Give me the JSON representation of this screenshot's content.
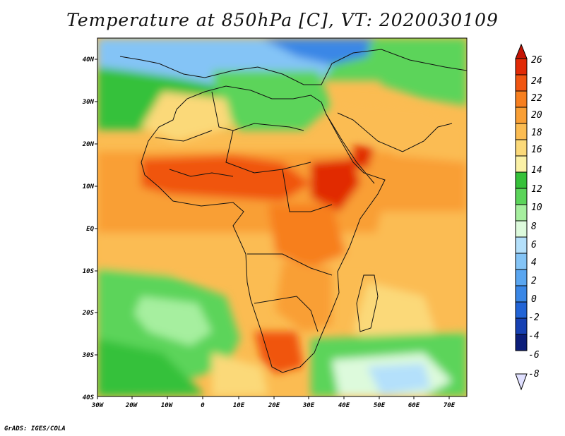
{
  "title": "Temperature at 850hPa [C], VT: 2020030109",
  "credit": "GrADS: IGES/COLA",
  "map": {
    "lon_labels": [
      "30W",
      "20W",
      "10W",
      "0",
      "10E",
      "20E",
      "30E",
      "40E",
      "50E",
      "60E",
      "70E"
    ],
    "lat_labels": [
      "40N",
      "30N",
      "20N",
      "10N",
      "EQ",
      "10S",
      "20S",
      "30S",
      "40S"
    ]
  },
  "colorbar": {
    "labels": [
      "26",
      "24",
      "22",
      "20",
      "18",
      "16",
      "14",
      "12",
      "10",
      "8",
      "6",
      "4",
      "2",
      "0",
      "-2",
      "-4",
      "-6",
      "-8"
    ],
    "colors": [
      "#e12a06",
      "#f05511",
      "#f77f1f",
      "#f99f35",
      "#fbbc52",
      "#fbd979",
      "#fbf1a6",
      "#36c13a",
      "#5bd45a",
      "#a6ef9f",
      "#ddfadc",
      "#b4e0fb",
      "#84c4f6",
      "#5aa6f0",
      "#3a87e6",
      "#2264d6",
      "#1741b3",
      "#0c1e7a"
    ],
    "top_arrow_color": "#c41405",
    "bottom_arrow_color": "#e0e0ff"
  }
}
